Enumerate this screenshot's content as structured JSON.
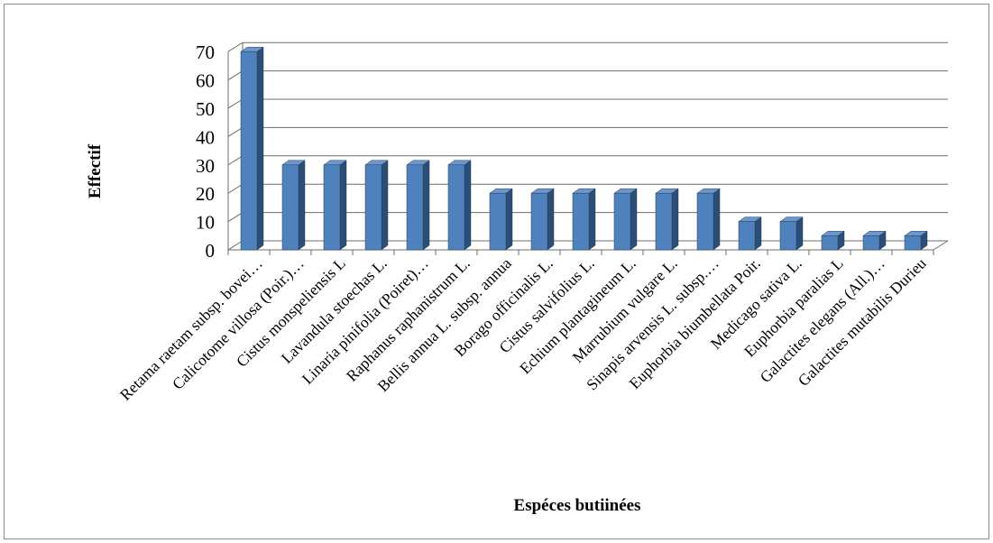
{
  "chart_data": {
    "type": "bar",
    "style": "3d-column",
    "title": "",
    "xlabel": "Espéces  butiinées",
    "ylabel": "Effectif",
    "ylim": [
      0,
      70
    ],
    "yticks": [
      0,
      10,
      20,
      30,
      40,
      50,
      60,
      70
    ],
    "grid": true,
    "legend": "none",
    "categories": [
      "Retama raetam subsp. bovei…",
      "Calicotome villosa (Poir.)…",
      "Cistus monspeliensis L",
      "Lavandula stoechas L.",
      "Linaria pinifolia (Poiret)…",
      "Raphanus raphanistrum L.",
      "Bellis annua L. subsp. annua",
      "Borago officinalis L.",
      "Cistus salvifolius L.",
      "Echium plantagineum L.",
      "Marrubium vulgare L.",
      "Sinapis arvensis L. subsp.…",
      "Euphorbia biumbellata Poir.",
      "Medicago sativa L.",
      "Euphorbia paralias L",
      "Galactites elegans (All.)…",
      "Galactites mutabilis Durieu"
    ],
    "values": [
      70,
      30,
      30,
      30,
      30,
      30,
      20,
      20,
      20,
      20,
      20,
      20,
      10,
      10,
      5,
      5,
      5
    ],
    "colors": {
      "bar_front": "#4f81bd",
      "bar_side": "#2c4d75",
      "bar_top": "#6d96cd",
      "grid": "#6e6e6e"
    }
  }
}
